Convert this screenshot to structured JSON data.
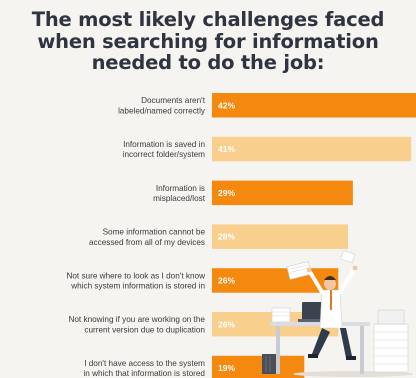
{
  "chart_data": {
    "type": "bar",
    "orientation": "horizontal",
    "title": "The most likely challenges faced when searching for information needed to do the job:",
    "title_lines": [
      "The most likely challenges faced",
      "when searching for information",
      "needed to do the job:"
    ],
    "categories": [
      "Documents aren't labeled/named correctly",
      "Information is saved in incorrect folder/system",
      "Information is misplaced/lost",
      "Some information cannot be accessed from all of my devices",
      "Not sure where to look as I don't know which system information is stored in",
      "Not knowing if you are working on the current version due to duplication",
      "I don't have access to the system in which that information is stored"
    ],
    "category_lines": [
      [
        "Documents aren't",
        "labeled/named correctly"
      ],
      [
        "Information is saved in",
        "incorrect folder/system"
      ],
      [
        "Information is",
        "misplaced/lost"
      ],
      [
        "Some information cannot be",
        "accessed from all of my devices"
      ],
      [
        "Not sure where to look as I don't know",
        "which system information is stored in"
      ],
      [
        "Not knowing if you are working on the",
        "current version due to duplication"
      ],
      [
        "I don't have access to the system",
        "in which that information is stored"
      ]
    ],
    "values": [
      42,
      41,
      29,
      28,
      26,
      26,
      19
    ],
    "value_labels": [
      "42%",
      "41%",
      "29%",
      "28%",
      "26%",
      "26%",
      "19%"
    ],
    "bar_colors": [
      "#f5880e",
      "#f9cf8e",
      "#f5880e",
      "#f9cf8e",
      "#f5880e",
      "#f9cf8e",
      "#f5880e"
    ],
    "unit": "%",
    "xlim": [
      0,
      42
    ],
    "grid": false,
    "legend": "none"
  },
  "colors": {
    "background": "#f6f4f0",
    "title": "#2f3440",
    "dark_orange": "#f5880e",
    "light_orange": "#f9cf8e",
    "label_text": "#3a3a3a"
  },
  "decorations": {
    "illustration": "office-worker-with-paper-stacks"
  }
}
